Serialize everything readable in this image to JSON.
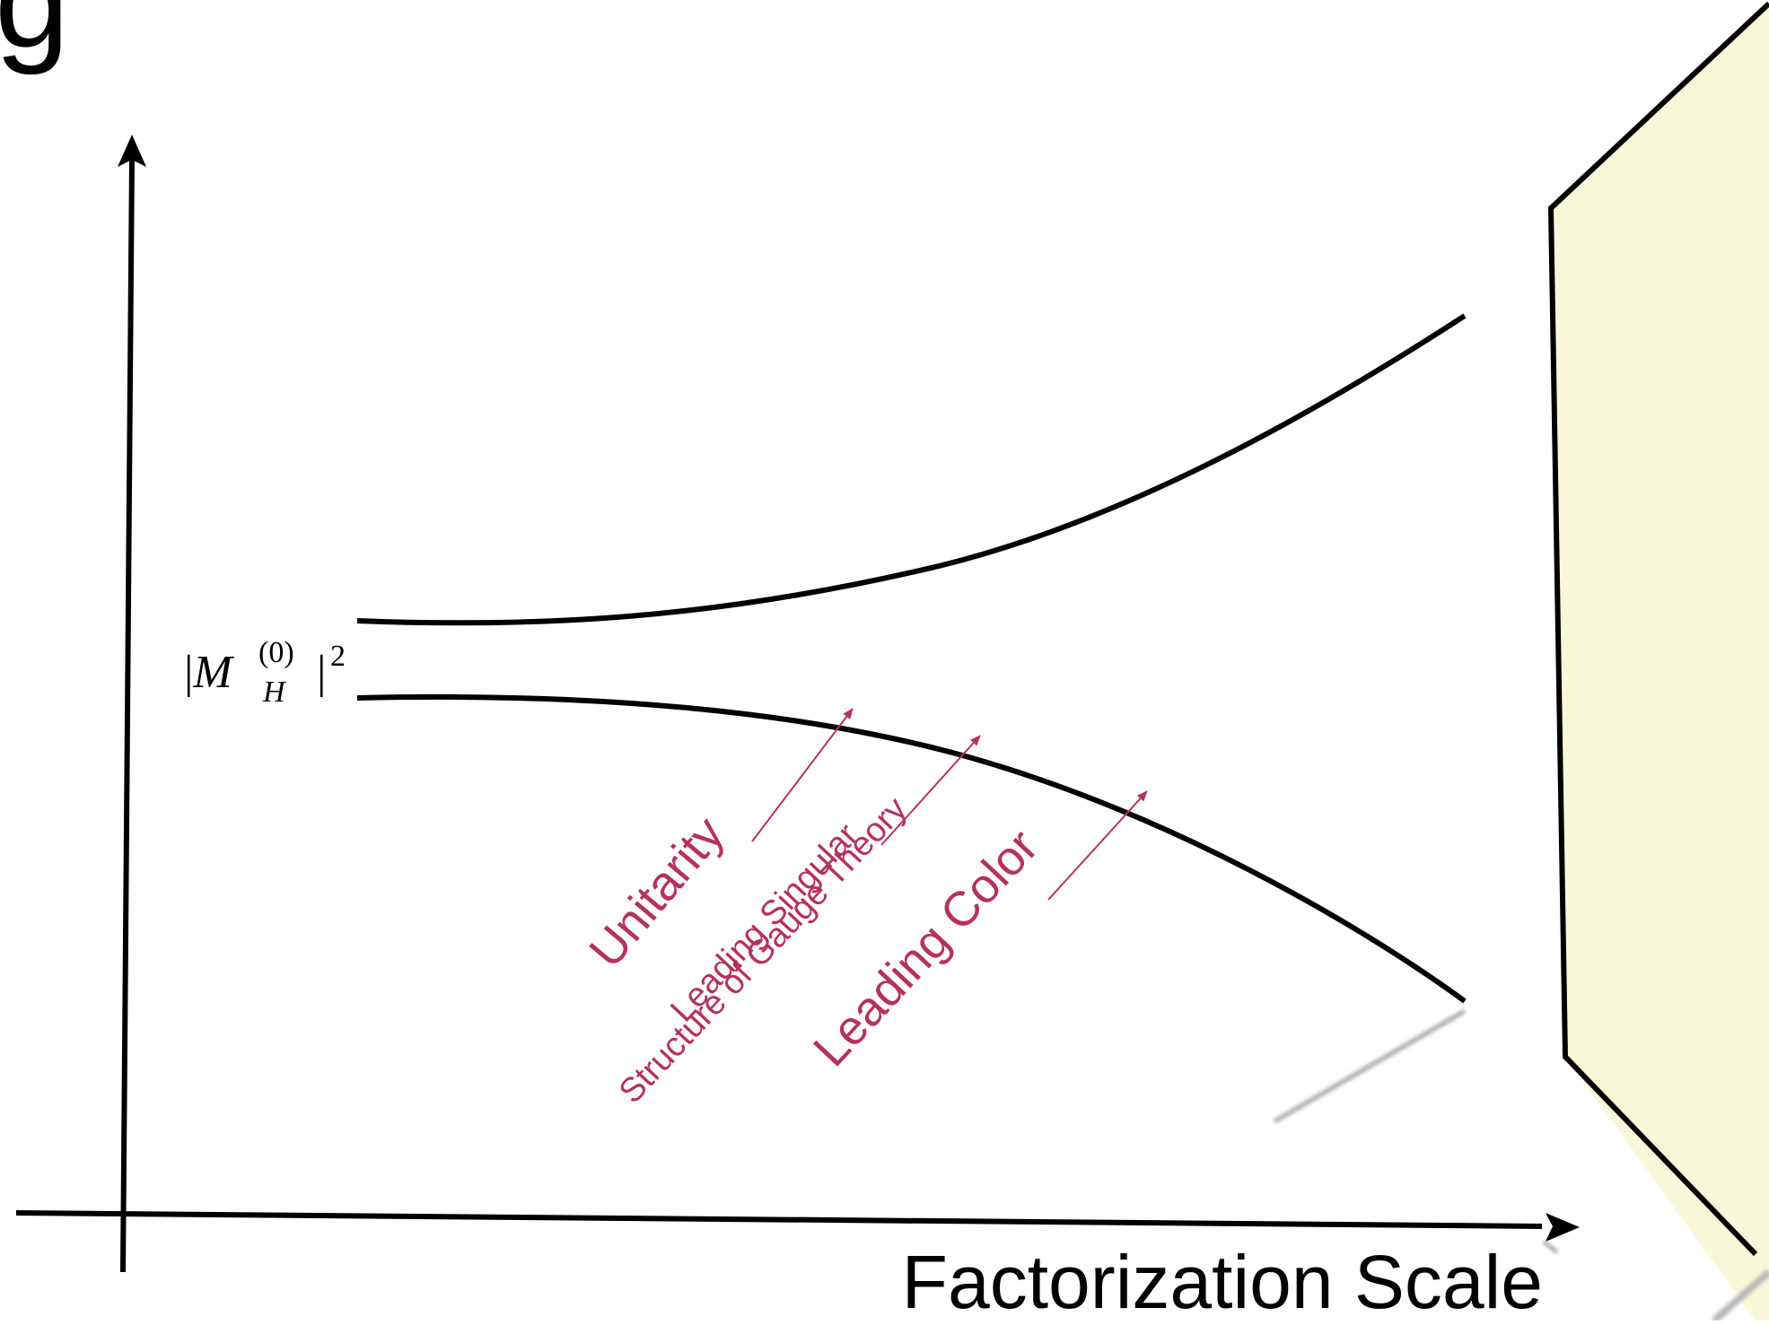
{
  "title_fragment": "g",
  "axis": {
    "x_label": "Factorization Scale"
  },
  "y_marker": {
    "base": "|M",
    "sup": "(0)",
    "sub": "H",
    "tail": "|",
    "power": "2"
  },
  "annotations": [
    {
      "id": "unitarity",
      "lines": [
        "Unitarity"
      ]
    },
    {
      "id": "leading-singular",
      "lines": [
        "Leading Singular",
        "Structure of Gauge Theory"
      ]
    },
    {
      "id": "leading-color",
      "lines": [
        "Leading Color"
      ]
    }
  ],
  "colors": {
    "ink": "#000000",
    "annotation": "#b5315e",
    "panel_fill": "#f8f8d8",
    "shadow": "#9a9a9a"
  }
}
